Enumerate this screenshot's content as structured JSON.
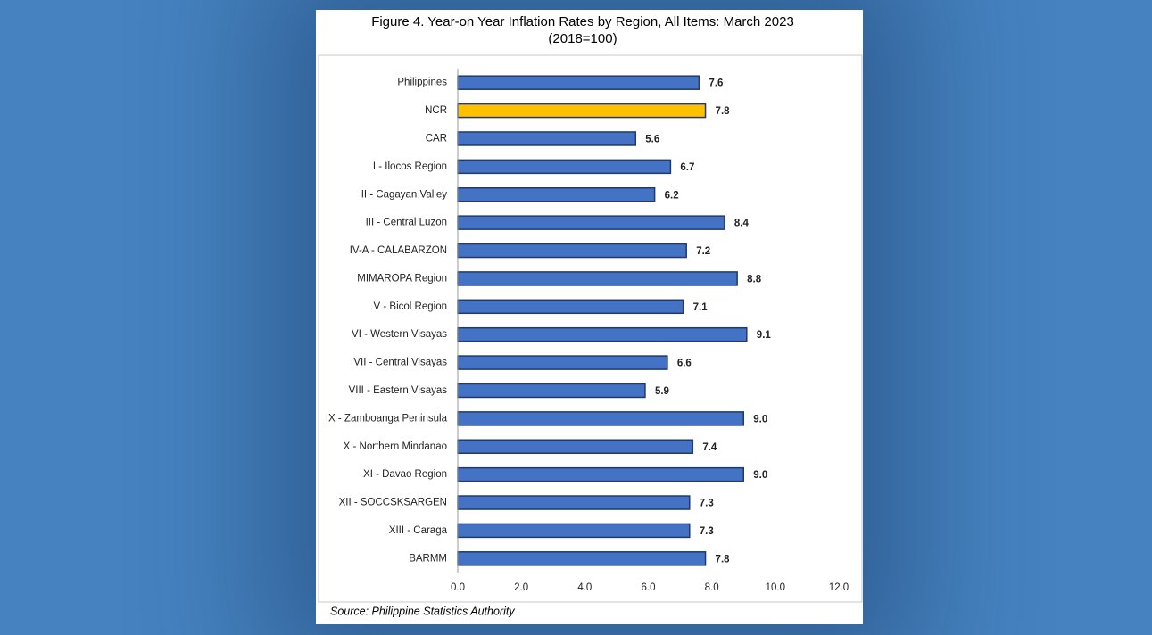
{
  "chart_data": {
    "type": "bar",
    "orientation": "horizontal",
    "title": "Figure 4. Year-on Year Inflation Rates by Region, All Items: March 2023",
    "subtitle": "(2018=100)",
    "source": "Source: Philippine Statistics Authority",
    "categories": [
      "Philippines",
      "NCR",
      "CAR",
      "I - Ilocos Region",
      "II - Cagayan Valley",
      "III - Central Luzon",
      "IV-A - CALABARZON",
      "MIMAROPA Region",
      "V - Bicol Region",
      "VI - Western Visayas",
      "VII - Central Visayas",
      "VIII - Eastern Visayas",
      "IX - Zamboanga Peninsula",
      "X - Northern Mindanao",
      "XI - Davao Region",
      "XII - SOCCSKSARGEN",
      "XIII - Caraga",
      "BARMM"
    ],
    "values": [
      7.6,
      7.8,
      5.6,
      6.7,
      6.2,
      8.4,
      7.2,
      8.8,
      7.1,
      9.1,
      6.6,
      5.9,
      9.0,
      7.4,
      9.0,
      7.3,
      7.3,
      7.8
    ],
    "value_labels": [
      "7.6",
      "7.8",
      "5.6",
      "6.7",
      "6.2",
      "8.4",
      "7.2",
      "8.8",
      "7.1",
      "9.1",
      "6.6",
      "5.9",
      "9.0",
      "7.4",
      "9.0",
      "7.3",
      "7.3",
      "7.8"
    ],
    "colors": [
      "#4472c4",
      "#ffc000",
      "#4472c4",
      "#4472c4",
      "#4472c4",
      "#4472c4",
      "#4472c4",
      "#4472c4",
      "#4472c4",
      "#4472c4",
      "#4472c4",
      "#4472c4",
      "#4472c4",
      "#4472c4",
      "#4472c4",
      "#4472c4",
      "#4472c4",
      "#4472c4"
    ],
    "xlim": [
      0,
      12
    ],
    "xticks": [
      {
        "value": 0,
        "label": "0.0"
      },
      {
        "value": 2,
        "label": "2.0"
      },
      {
        "value": 4,
        "label": "4.0"
      },
      {
        "value": 6,
        "label": "6.0"
      },
      {
        "value": 8,
        "label": "8.0"
      },
      {
        "value": 10,
        "label": "10.0"
      },
      {
        "value": 12,
        "label": "12.0"
      }
    ],
    "grid": false
  }
}
